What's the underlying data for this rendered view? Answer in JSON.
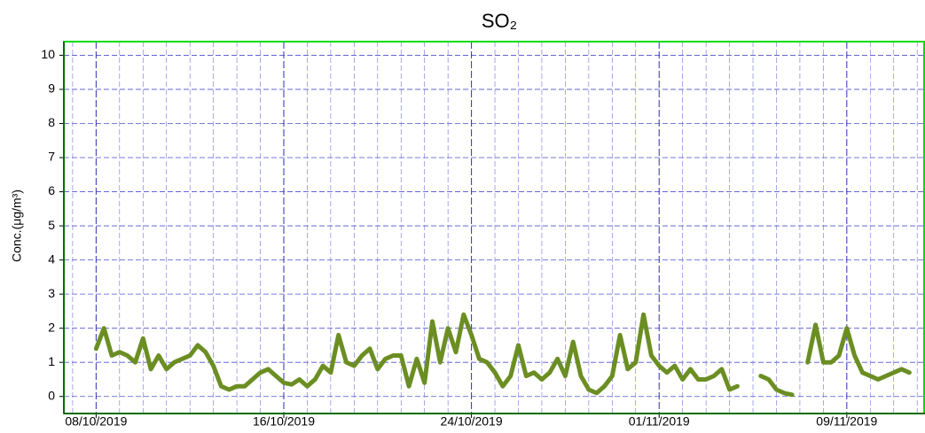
{
  "chart_data": {
    "type": "line",
    "title": "SO₂",
    "y_label": "Conc.(μg/m³)",
    "xlim": [
      "2019-10-06 15:00",
      "2019-11-12 08:00"
    ],
    "xticks": [
      {
        "value": "2019-10-08 00:00",
        "label": "08/10/2019"
      },
      {
        "value": "2019-10-16 00:00",
        "label": "16/10/2019"
      },
      {
        "value": "2019-10-24 00:00",
        "label": "24/10/2019"
      },
      {
        "value": "2019-11-01 00:00",
        "label": "01/11/2019"
      },
      {
        "value": "2019-11-09 00:00",
        "label": "09/11/2019"
      }
    ],
    "xminorticks": [
      "2019-10-07 00:00",
      "2019-10-09 00:00",
      "2019-10-10 00:00",
      "2019-10-11 00:00",
      "2019-10-12 00:00",
      "2019-10-13 00:00",
      "2019-10-14 00:00",
      "2019-10-15 00:00",
      "2019-10-17 00:00",
      "2019-10-18 00:00",
      "2019-10-19 00:00",
      "2019-10-20 00:00",
      "2019-10-21 00:00",
      "2019-10-22 00:00",
      "2019-10-23 00:00",
      "2019-10-25 00:00",
      "2019-10-26 00:00",
      "2019-10-27 00:00",
      "2019-10-28 00:00",
      "2019-10-29 00:00",
      "2019-10-30 00:00",
      "2019-10-31 00:00",
      "2019-11-02 00:00",
      "2019-11-03 00:00",
      "2019-11-04 00:00",
      "2019-11-05 00:00",
      "2019-11-06 00:00",
      "2019-11-07 00:00",
      "2019-11-08 00:00",
      "2019-11-10 00:00",
      "2019-11-11 00:00",
      "2019-11-12 00:00"
    ],
    "ylim": [
      -0.5,
      10.4
    ],
    "yticks": [
      0,
      1,
      2,
      3,
      4,
      5,
      6,
      7,
      8,
      9,
      10
    ],
    "grid": true,
    "x": [
      "2019-10-08 00:00",
      "2019-10-08 08:00",
      "2019-10-08 16:00",
      "2019-10-09 00:00",
      "2019-10-09 08:00",
      "2019-10-09 16:00",
      "2019-10-10 00:00",
      "2019-10-10 08:00",
      "2019-10-10 16:00",
      "2019-10-11 00:00",
      "2019-10-11 08:00",
      "2019-10-11 16:00",
      "2019-10-12 00:00",
      "2019-10-12 08:00",
      "2019-10-12 16:00",
      "2019-10-13 00:00",
      "2019-10-13 08:00",
      "2019-10-13 16:00",
      "2019-10-14 00:00",
      "2019-10-14 08:00",
      "2019-10-14 16:00",
      "2019-10-15 00:00",
      "2019-10-15 08:00",
      "2019-10-15 16:00",
      "2019-10-16 00:00",
      "2019-10-16 08:00",
      "2019-10-16 16:00",
      "2019-10-17 00:00",
      "2019-10-17 08:00",
      "2019-10-17 16:00",
      "2019-10-18 00:00",
      "2019-10-18 08:00",
      "2019-10-18 16:00",
      "2019-10-19 00:00",
      "2019-10-19 08:00",
      "2019-10-19 16:00",
      "2019-10-20 00:00",
      "2019-10-20 08:00",
      "2019-10-20 16:00",
      "2019-10-21 00:00",
      "2019-10-21 08:00",
      "2019-10-21 16:00",
      "2019-10-22 00:00",
      "2019-10-22 08:00",
      "2019-10-22 16:00",
      "2019-10-23 00:00",
      "2019-10-23 08:00",
      "2019-10-23 16:00",
      "2019-10-24 00:00",
      "2019-10-24 08:00",
      "2019-10-24 16:00",
      "2019-10-25 00:00",
      "2019-10-25 08:00",
      "2019-10-25 16:00",
      "2019-10-26 00:00",
      "2019-10-26 08:00",
      "2019-10-26 16:00",
      "2019-10-27 00:00",
      "2019-10-27 08:00",
      "2019-10-27 16:00",
      "2019-10-28 00:00",
      "2019-10-28 08:00",
      "2019-10-28 16:00",
      "2019-10-29 00:00",
      "2019-10-29 08:00",
      "2019-10-29 16:00",
      "2019-10-30 00:00",
      "2019-10-30 08:00",
      "2019-10-30 16:00",
      "2019-10-31 00:00",
      "2019-10-31 08:00",
      "2019-10-31 16:00",
      "2019-11-01 00:00",
      "2019-11-01 08:00",
      "2019-11-01 16:00",
      "2019-11-02 00:00",
      "2019-11-02 08:00",
      "2019-11-02 16:00",
      "2019-11-03 00:00",
      "2019-11-03 08:00",
      "2019-11-03 16:00",
      "2019-11-04 00:00",
      "2019-11-04 08:00",
      "2019-11-04 16:00",
      "2019-11-05 00:00",
      "2019-11-05 08:00",
      "2019-11-05 16:00",
      "2019-11-06 00:00",
      "2019-11-06 08:00",
      "2019-11-06 16:00",
      "2019-11-07 00:00",
      "2019-11-07 08:00",
      "2019-11-07 16:00",
      "2019-11-08 00:00",
      "2019-11-08 08:00",
      "2019-11-08 16:00",
      "2019-11-09 00:00",
      "2019-11-09 08:00",
      "2019-11-09 16:00",
      "2019-11-10 00:00",
      "2019-11-10 08:00",
      "2019-11-10 16:00",
      "2019-11-11 00:00",
      "2019-11-11 08:00",
      "2019-11-11 16:00"
    ],
    "series": [
      {
        "name": "SO₂",
        "color": "#6b8e23",
        "values": [
          1.4,
          2.0,
          1.2,
          1.3,
          1.2,
          1.0,
          1.7,
          0.8,
          1.2,
          0.8,
          1.0,
          1.1,
          1.2,
          1.5,
          1.3,
          0.9,
          0.3,
          0.2,
          0.3,
          0.3,
          0.5,
          0.7,
          0.8,
          0.6,
          0.4,
          0.35,
          0.5,
          0.3,
          0.5,
          0.9,
          0.7,
          1.8,
          1.0,
          0.9,
          1.2,
          1.4,
          0.8,
          1.1,
          1.2,
          1.2,
          0.3,
          1.1,
          0.4,
          2.2,
          1.0,
          2.0,
          1.3,
          2.4,
          1.8,
          1.1,
          1.0,
          0.7,
          0.3,
          0.6,
          1.5,
          0.6,
          0.7,
          0.5,
          0.7,
          1.1,
          0.6,
          1.6,
          0.6,
          0.2,
          0.1,
          0.3,
          0.6,
          1.8,
          0.8,
          1.0,
          2.4,
          1.2,
          0.9,
          0.7,
          0.9,
          0.5,
          0.8,
          0.5,
          0.5,
          0.6,
          0.8,
          0.2,
          0.3,
          null,
          null,
          0.6,
          0.5,
          0.2,
          0.1,
          0.05,
          null,
          1.0,
          2.1,
          1.0,
          1.0,
          1.2,
          2.0,
          1.2,
          0.7,
          0.6,
          0.5,
          0.6,
          0.7,
          0.8,
          0.7
        ]
      }
    ]
  }
}
